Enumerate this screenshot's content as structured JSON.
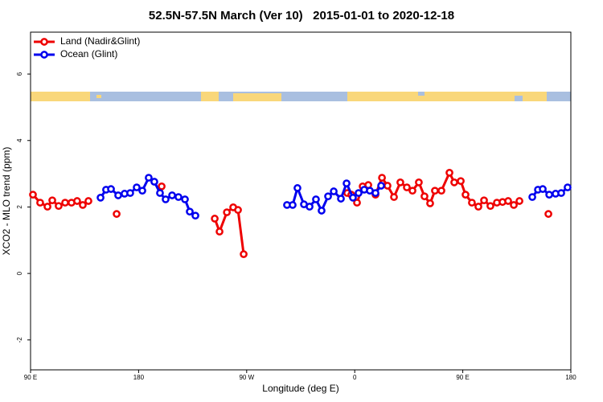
{
  "chart_data": {
    "type": "line",
    "title": "52.5N-57.5N March (Ver 10)   2015-01-01 to 2020-12-18",
    "x_label": "Longitude (deg E)",
    "y_label": "XCO2 - MLO trend (ppm)",
    "xlim": [
      90,
      540
    ],
    "ylim": [
      -2.9,
      7.26
    ],
    "xticks": [
      {
        "value": 90,
        "label": "90 E"
      },
      180,
      {
        "value": 270,
        "label": "90 W"
      },
      {
        "value": 360,
        "label": "0"
      },
      {
        "value": 450,
        "label": "90 E"
      },
      {
        "value": 540,
        "label": "180"
      }
    ],
    "yticks": [
      -2,
      0,
      2,
      4,
      6
    ],
    "legend": "top-left",
    "series": [
      {
        "name": "Land (Nadir&Glint)",
        "color": "#ee0000",
        "x": [
          92.0,
          98.0,
          104.1,
          108.1,
          113.4,
          118.8,
          124.1,
          128.8,
          133.5,
          138.2,
          null,
          161.7,
          null,
          199.2,
          null,
          243.4,
          247.4,
          253.5,
          258.8,
          262.8,
          267.5,
          null,
          353.8,
          357.2,
          361.9,
          366.6,
          371.3,
          377.3,
          382.7,
          387.3,
          392.7,
          398.0,
          403.4,
          408.1,
          413.4,
          418.1,
          422.8,
          426.8,
          432.2,
          438.9,
          442.9,
          448.3,
          452.3,
          457.6,
          463.0,
          467.7,
          473.0,
          478.4,
          483.1,
          487.8,
          492.5,
          497.2,
          null,
          521.3
        ],
        "values": [
          2.37,
          2.13,
          2.01,
          2.2,
          2.03,
          2.13,
          2.13,
          2.18,
          2.06,
          2.18,
          null,
          1.79,
          null,
          2.62,
          null,
          1.65,
          1.26,
          1.84,
          1.99,
          1.91,
          0.58,
          null,
          2.42,
          2.37,
          2.13,
          2.62,
          2.66,
          2.37,
          2.88,
          2.64,
          2.3,
          2.74,
          2.59,
          2.49,
          2.74,
          2.32,
          2.11,
          2.49,
          2.49,
          3.03,
          2.74,
          2.78,
          2.37,
          2.13,
          2.01,
          2.2,
          2.03,
          2.13,
          2.15,
          2.18,
          2.06,
          2.18,
          null,
          1.79
        ]
      },
      {
        "name": "Ocean (Glint)",
        "color": "#0000ee",
        "x": [
          148.3,
          152.9,
          157.0,
          163.0,
          168.3,
          173.0,
          178.4,
          183.1,
          188.4,
          193.1,
          197.8,
          202.5,
          207.9,
          213.2,
          218.6,
          222.6,
          227.3,
          null,
          303.6,
          308.3,
          312.3,
          317.7,
          322.4,
          327.7,
          332.4,
          337.8,
          342.5,
          348.5,
          353.2,
          358.5,
          363.2,
          367.9,
          372.6,
          377.3,
          382.0,
          null,
          507.9,
          512.6,
          516.6,
          522.0,
          527.3,
          532.0,
          537.3
        ],
        "values": [
          2.28,
          2.52,
          2.54,
          2.35,
          2.4,
          2.42,
          2.59,
          2.49,
          2.88,
          2.76,
          2.42,
          2.23,
          2.35,
          2.3,
          2.23,
          1.86,
          1.74,
          null,
          2.06,
          2.06,
          2.57,
          2.08,
          2.01,
          2.23,
          1.89,
          2.32,
          2.47,
          2.25,
          2.71,
          2.28,
          2.42,
          2.52,
          2.49,
          2.42,
          2.64,
          null,
          2.3,
          2.52,
          2.54,
          2.37,
          2.4,
          2.42,
          2.59
        ]
      }
    ]
  }
}
